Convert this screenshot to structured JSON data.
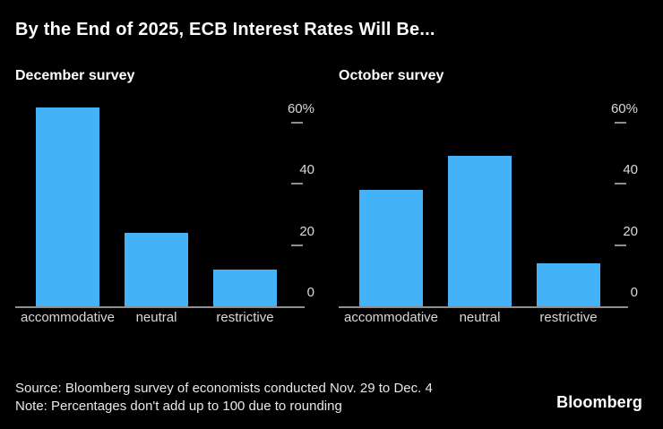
{
  "title": "By the End of 2025, ECB Interest Rates Will Be...",
  "colors": {
    "background": "#000000",
    "bar": "#44b2f7",
    "axis": "#8f8f8f",
    "tick_label": "#d9d9d9",
    "text": "#ffffff"
  },
  "chart_data": [
    {
      "type": "bar",
      "title": "December survey",
      "categories": [
        "accommodative",
        "neutral",
        "restrictive"
      ],
      "values": [
        65,
        24,
        12
      ],
      "ylim": [
        0,
        67
      ],
      "yticks": [
        0,
        20,
        40,
        60
      ],
      "ytick_labels": [
        "0",
        "20",
        "40",
        "60%"
      ],
      "grid": false,
      "legend": "none",
      "bar_color": "#44b2f7"
    },
    {
      "type": "bar",
      "title": "October survey",
      "categories": [
        "accommodative",
        "neutral",
        "restrictive"
      ],
      "values": [
        38,
        49,
        14
      ],
      "ylim": [
        0,
        67
      ],
      "yticks": [
        0,
        20,
        40,
        60
      ],
      "ytick_labels": [
        "0",
        "20",
        "40",
        "60%"
      ],
      "grid": false,
      "legend": "none",
      "bar_color": "#44b2f7"
    }
  ],
  "footer": {
    "source": "Source: Bloomberg survey of economists conducted Nov. 29 to Dec. 4",
    "note": "Note: Percentages don't add up to 100 due to rounding"
  },
  "logo": "Bloomberg"
}
